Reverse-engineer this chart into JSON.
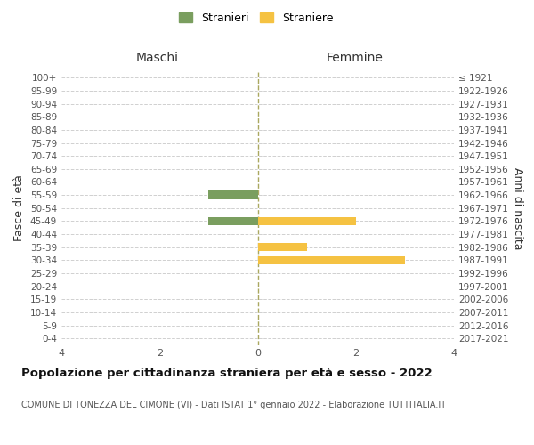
{
  "age_groups": [
    "100+",
    "95-99",
    "90-94",
    "85-89",
    "80-84",
    "75-79",
    "70-74",
    "65-69",
    "60-64",
    "55-59",
    "50-54",
    "45-49",
    "40-44",
    "35-39",
    "30-34",
    "25-29",
    "20-24",
    "15-19",
    "10-14",
    "5-9",
    "0-4"
  ],
  "birth_years": [
    "≤ 1921",
    "1922-1926",
    "1927-1931",
    "1932-1936",
    "1937-1941",
    "1942-1946",
    "1947-1951",
    "1952-1956",
    "1957-1961",
    "1962-1966",
    "1967-1971",
    "1972-1976",
    "1977-1981",
    "1982-1986",
    "1987-1991",
    "1992-1996",
    "1997-2001",
    "2002-2006",
    "2007-2011",
    "2012-2016",
    "2017-2021"
  ],
  "stranieri": [
    0,
    0,
    0,
    0,
    0,
    0,
    0,
    0,
    0,
    1,
    0,
    1,
    0,
    0,
    0,
    0,
    0,
    0,
    0,
    0,
    0
  ],
  "straniere": [
    0,
    0,
    0,
    0,
    0,
    0,
    0,
    0,
    0,
    0,
    0,
    2,
    0,
    1,
    3,
    0,
    0,
    0,
    0,
    0,
    0
  ],
  "color_stranieri": "#7a9e5f",
  "color_straniere": "#f5c242",
  "xlim": 4,
  "title": "Popolazione per cittadinanza straniera per età e sesso - 2022",
  "subtitle": "COMUNE DI TONEZZA DEL CIMONE (VI) - Dati ISTAT 1° gennaio 2022 - Elaborazione TUTTITALIA.IT",
  "ylabel_left": "Fasce di età",
  "ylabel_right": "Anni di nascita",
  "header_maschi": "Maschi",
  "header_femmine": "Femmine",
  "legend_stranieri": "Stranieri",
  "legend_straniere": "Straniere",
  "background_color": "#ffffff",
  "grid_color": "#d0d0d0",
  "center_line_color": "#aaa860"
}
